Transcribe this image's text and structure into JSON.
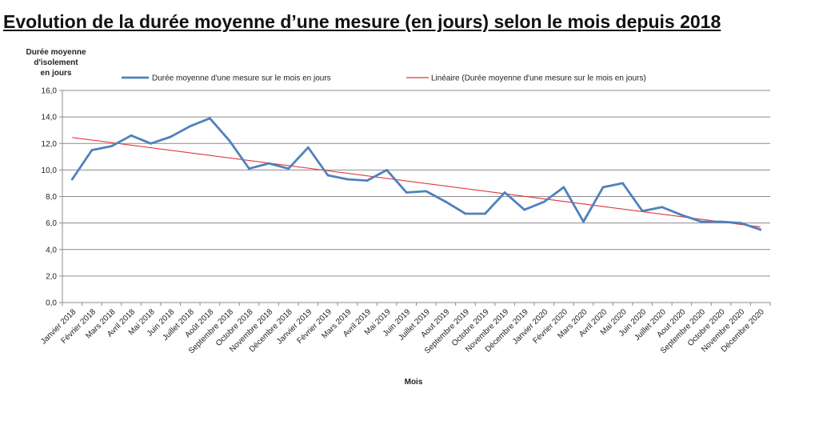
{
  "title": "Evolution de la durée moyenne d’une mesure (en jours) selon le mois depuis 2018",
  "chart_data": {
    "type": "line",
    "ylabel_lines": [
      "Durée moyenne",
      "d'isolement",
      "en jours"
    ],
    "xlabel": "Mois",
    "ylim": [
      0,
      16
    ],
    "ytick_step": 2,
    "ytick_labels": [
      "0,0",
      "2,0",
      "4,0",
      "6,0",
      "8,0",
      "10,0",
      "12,0",
      "14,0",
      "16,0"
    ],
    "grid": true,
    "legend_position": "top",
    "categories": [
      "Janvier 2018",
      "Février 2018",
      "Mars 2018",
      "Avril 2018",
      "Mai 2018",
      "Juin 2018",
      "Juillet 2018",
      "Août 2018",
      "Septembre 2018",
      "Octobre 2018",
      "Novembre 2018",
      "Décembre 2018",
      "Janvier 2019",
      "Février 2019",
      "Mars 2019",
      "Avril 2019",
      "Mai 2019",
      "Juin 2019",
      "Juillet 2019",
      "Aout 2019",
      "Septembre 2019",
      "Octobre 2019",
      "Novembre 2019",
      "Décembre 2019",
      "Janvier 2020",
      "Février 2020",
      "Mars 2020",
      "Avril 2020",
      "Mai 2020",
      "Juin 2020",
      "Juillet 2020",
      "Aout 2020",
      "Septembre 2020",
      "Octobre 2020",
      "Novembre 2020",
      "Décembre 2020"
    ],
    "series": [
      {
        "name": "Durée moyenne d'une mesure sur le mois en jours",
        "color": "#4f81bd",
        "values": [
          9.3,
          11.5,
          11.8,
          12.6,
          12.0,
          12.5,
          13.3,
          13.9,
          12.2,
          10.1,
          10.5,
          10.1,
          11.7,
          9.6,
          9.3,
          9.2,
          10.0,
          8.3,
          8.4,
          7.6,
          6.7,
          6.7,
          8.3,
          7.0,
          7.6,
          8.7,
          6.1,
          8.7,
          9.0,
          6.9,
          7.2,
          6.6,
          6.1,
          6.1,
          6.0,
          5.5
        ]
      },
      {
        "name": "Linéaire (Durée moyenne d'une mesure sur le mois en jours)",
        "color": "#e03a3a",
        "type": "trendline",
        "start": 12.45,
        "end": 5.7
      }
    ]
  }
}
